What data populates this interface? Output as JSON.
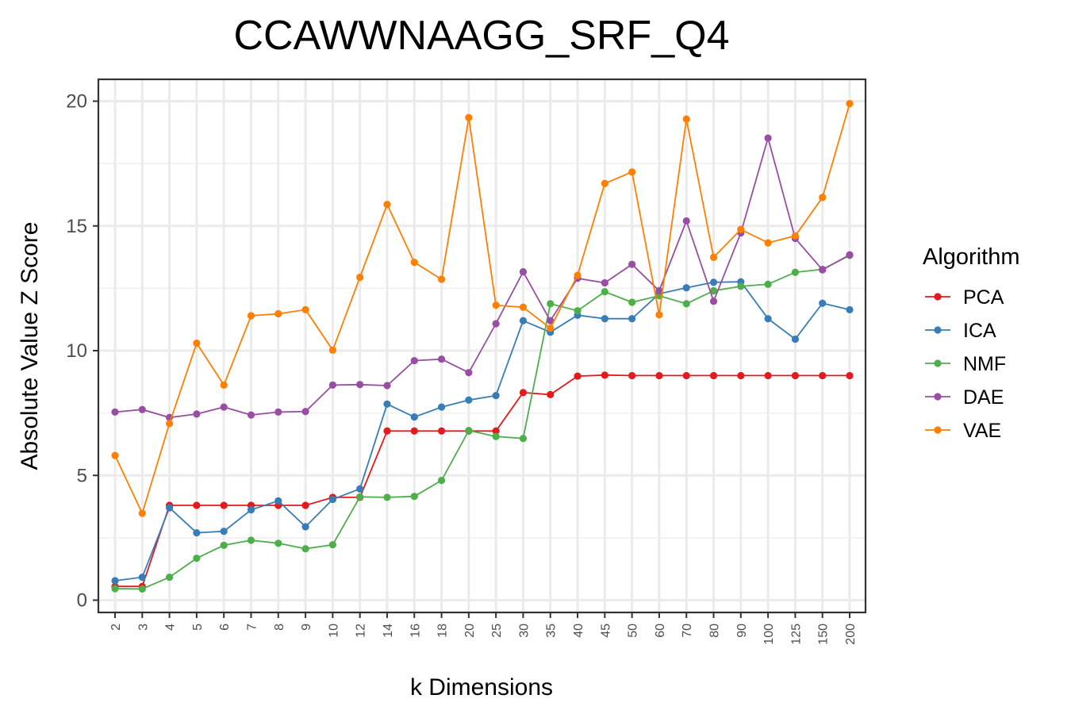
{
  "chart_data": {
    "type": "line",
    "title": "CCAWWNAAGG_SRF_Q4",
    "xlabel": "k Dimensions",
    "ylabel": "Absolute Value Z Score",
    "categories": [
      "2",
      "3",
      "4",
      "5",
      "6",
      "7",
      "8",
      "9",
      "10",
      "12",
      "14",
      "16",
      "18",
      "20",
      "25",
      "30",
      "35",
      "40",
      "45",
      "50",
      "60",
      "70",
      "80",
      "90",
      "100",
      "125",
      "150",
      "200"
    ],
    "yticks": [
      0,
      5,
      10,
      15,
      20
    ],
    "yticks_labels": [
      "0",
      "5",
      "10",
      "15",
      "20"
    ],
    "ylim": [
      -0.5,
      20.9
    ],
    "grid": true,
    "legend": {
      "title": "Algorithm",
      "position": "right"
    },
    "series": [
      {
        "name": "PCA",
        "color": "#e41a1c",
        "values": [
          0.55,
          0.55,
          3.8,
          3.8,
          3.8,
          3.8,
          3.8,
          3.8,
          4.12,
          4.12,
          6.78,
          6.78,
          6.78,
          6.78,
          6.78,
          8.32,
          8.24,
          8.98,
          9.02,
          9.0,
          9.0,
          9.0,
          9.0,
          9.0,
          9.0,
          9.0,
          9.0,
          9.0
        ]
      },
      {
        "name": "ICA",
        "color": "#377eb8",
        "values": [
          0.78,
          0.92,
          3.7,
          2.7,
          2.76,
          3.62,
          3.98,
          2.94,
          4.04,
          4.46,
          7.86,
          7.34,
          7.74,
          8.02,
          8.2,
          11.2,
          10.74,
          11.42,
          11.28,
          11.28,
          12.28,
          12.52,
          12.74,
          12.76,
          11.28,
          10.46,
          11.9,
          11.64
        ]
      },
      {
        "name": "NMF",
        "color": "#4daf4a",
        "values": [
          0.46,
          0.45,
          0.92,
          1.68,
          2.2,
          2.4,
          2.28,
          2.06,
          2.22,
          4.14,
          4.12,
          4.16,
          4.8,
          6.8,
          6.56,
          6.48,
          11.88,
          11.6,
          12.36,
          11.94,
          12.2,
          11.88,
          12.4,
          12.58,
          12.66,
          13.14,
          13.26,
          13.82
        ]
      },
      {
        "name": "DAE",
        "color": "#984ea3",
        "values": [
          7.54,
          7.64,
          7.32,
          7.46,
          7.74,
          7.42,
          7.54,
          7.56,
          8.62,
          8.64,
          8.6,
          9.6,
          9.66,
          9.12,
          11.08,
          13.16,
          11.2,
          12.9,
          12.72,
          13.46,
          12.4,
          15.2,
          11.98,
          14.72,
          18.52,
          14.5,
          13.24,
          13.84
        ]
      },
      {
        "name": "VAE",
        "color": "#ff7f00",
        "values": [
          5.8,
          3.48,
          7.08,
          10.3,
          8.62,
          11.4,
          11.48,
          11.64,
          10.02,
          12.94,
          15.86,
          13.54,
          12.86,
          19.34,
          11.82,
          11.74,
          10.9,
          13.02,
          16.7,
          17.16,
          11.44,
          19.28,
          13.74,
          14.86,
          14.32,
          14.6,
          16.14,
          19.9
        ]
      }
    ]
  }
}
